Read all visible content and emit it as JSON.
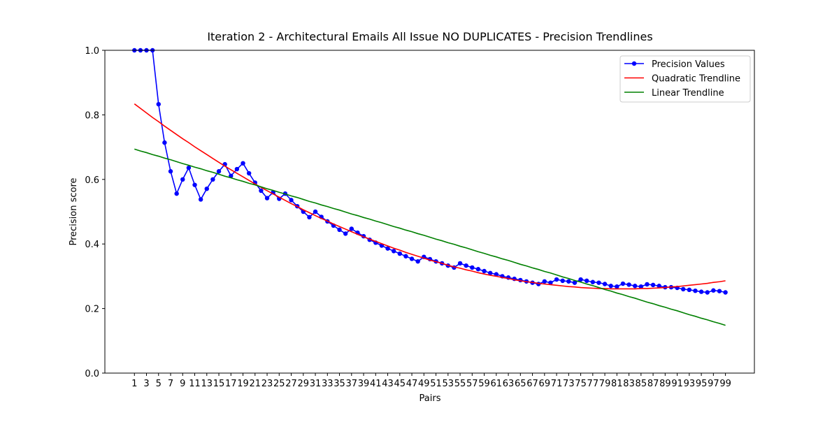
{
  "chart_data": {
    "type": "line",
    "title": "Iteration 2 - Architectural Emails All Issue NO DUPLICATES - Precision Trendlines",
    "x_label": "Pairs",
    "y_label": "Precision score",
    "x": [
      1,
      2,
      3,
      4,
      5,
      6,
      7,
      8,
      9,
      10,
      11,
      12,
      13,
      14,
      15,
      16,
      17,
      18,
      19,
      20,
      21,
      22,
      23,
      24,
      25,
      26,
      27,
      28,
      29,
      30,
      31,
      32,
      33,
      34,
      35,
      36,
      37,
      38,
      39,
      40,
      41,
      42,
      43,
      44,
      45,
      46,
      47,
      48,
      49,
      50,
      51,
      52,
      53,
      54,
      55,
      56,
      57,
      58,
      59,
      60,
      61,
      62,
      63,
      64,
      65,
      66,
      67,
      68,
      69,
      70,
      71,
      72,
      73,
      74,
      75,
      76,
      77,
      78,
      79,
      80,
      81,
      82,
      83,
      84,
      85,
      86,
      87,
      88,
      89,
      90,
      91,
      92,
      93,
      94,
      95,
      96,
      97,
      98,
      99
    ],
    "xlim": [
      -3.9,
      103.8
    ],
    "xticks": [
      1,
      3,
      5,
      7,
      9,
      11,
      13,
      15,
      17,
      19,
      21,
      23,
      25,
      27,
      29,
      31,
      33,
      35,
      37,
      39,
      41,
      43,
      45,
      47,
      49,
      51,
      53,
      55,
      57,
      59,
      61,
      63,
      65,
      67,
      69,
      71,
      73,
      75,
      77,
      79,
      81,
      83,
      85,
      87,
      89,
      91,
      93,
      95,
      97,
      99
    ],
    "ylim": [
      0,
      1
    ],
    "yticks": [
      {
        "value": 0,
        "label": "0.0"
      },
      {
        "value": 0.2,
        "label": "0.2"
      },
      {
        "value": 0.4,
        "label": "0.4"
      },
      {
        "value": 0.6,
        "label": "0.6"
      },
      {
        "value": 0.8,
        "label": "0.8"
      },
      {
        "value": 1,
        "label": "1.0"
      }
    ],
    "legend_loc": "upper right",
    "series": [
      {
        "name": "Precision Values",
        "color": "#0000ff",
        "marker": true,
        "values": [
          1.0,
          1.0,
          1.0,
          1.0,
          0.833,
          0.714,
          0.625,
          0.556,
          0.6,
          0.636,
          0.583,
          0.538,
          0.571,
          0.6,
          0.625,
          0.647,
          0.611,
          0.632,
          0.65,
          0.619,
          0.59,
          0.565,
          0.542,
          0.56,
          0.54,
          0.556,
          0.536,
          0.517,
          0.5,
          0.483,
          0.5,
          0.484,
          0.47,
          0.457,
          0.444,
          0.432,
          0.447,
          0.435,
          0.424,
          0.413,
          0.404,
          0.395,
          0.386,
          0.378,
          0.37,
          0.362,
          0.354,
          0.346,
          0.36,
          0.353,
          0.346,
          0.34,
          0.333,
          0.327,
          0.34,
          0.333,
          0.327,
          0.322,
          0.316,
          0.31,
          0.306,
          0.3,
          0.296,
          0.292,
          0.288,
          0.284,
          0.28,
          0.276,
          0.284,
          0.28,
          0.29,
          0.286,
          0.284,
          0.28,
          0.29,
          0.286,
          0.282,
          0.28,
          0.276,
          0.27,
          0.268,
          0.277,
          0.274,
          0.27,
          0.268,
          0.275,
          0.273,
          0.27,
          0.266,
          0.266,
          0.264,
          0.26,
          0.258,
          0.255,
          0.252,
          0.25,
          0.256,
          0.254,
          0.25
        ]
      },
      {
        "name": "Quadratic Trendline",
        "color": "#ff0000",
        "marker": false,
        "values": [
          0.834,
          0.82,
          0.806,
          0.792,
          0.779,
          0.765,
          0.752,
          0.739,
          0.726,
          0.714,
          0.701,
          0.689,
          0.677,
          0.665,
          0.653,
          0.641,
          0.63,
          0.619,
          0.608,
          0.597,
          0.586,
          0.575,
          0.565,
          0.555,
          0.545,
          0.535,
          0.525,
          0.516,
          0.506,
          0.497,
          0.488,
          0.479,
          0.471,
          0.462,
          0.454,
          0.446,
          0.438,
          0.43,
          0.422,
          0.415,
          0.408,
          0.401,
          0.394,
          0.387,
          0.381,
          0.374,
          0.368,
          0.362,
          0.356,
          0.35,
          0.345,
          0.34,
          0.334,
          0.329,
          0.325,
          0.32,
          0.316,
          0.311,
          0.307,
          0.303,
          0.3,
          0.296,
          0.293,
          0.289,
          0.286,
          0.283,
          0.281,
          0.278,
          0.276,
          0.274,
          0.272,
          0.27,
          0.268,
          0.267,
          0.265,
          0.264,
          0.263,
          0.262,
          0.262,
          0.261,
          0.261,
          0.261,
          0.261,
          0.261,
          0.262,
          0.262,
          0.263,
          0.264,
          0.265,
          0.267,
          0.268,
          0.27,
          0.272,
          0.274,
          0.276,
          0.278,
          0.281,
          0.283,
          0.286
        ]
      },
      {
        "name": "Linear Trendline",
        "color": "#008000",
        "marker": false,
        "values": [
          0.694,
          0.688,
          0.683,
          0.677,
          0.672,
          0.666,
          0.661,
          0.655,
          0.649,
          0.644,
          0.638,
          0.633,
          0.627,
          0.622,
          0.616,
          0.61,
          0.605,
          0.599,
          0.594,
          0.588,
          0.583,
          0.577,
          0.571,
          0.566,
          0.56,
          0.555,
          0.549,
          0.544,
          0.538,
          0.532,
          0.527,
          0.521,
          0.516,
          0.51,
          0.505,
          0.499,
          0.493,
          0.488,
          0.482,
          0.477,
          0.471,
          0.466,
          0.46,
          0.454,
          0.449,
          0.443,
          0.438,
          0.432,
          0.427,
          0.421,
          0.415,
          0.41,
          0.404,
          0.399,
          0.393,
          0.388,
          0.382,
          0.376,
          0.371,
          0.365,
          0.36,
          0.354,
          0.349,
          0.343,
          0.337,
          0.332,
          0.326,
          0.321,
          0.315,
          0.31,
          0.304,
          0.298,
          0.293,
          0.287,
          0.282,
          0.276,
          0.271,
          0.265,
          0.259,
          0.254,
          0.248,
          0.243,
          0.237,
          0.232,
          0.226,
          0.22,
          0.215,
          0.209,
          0.204,
          0.198,
          0.193,
          0.187,
          0.181,
          0.176,
          0.17,
          0.165,
          0.159,
          0.154,
          0.148
        ]
      }
    ]
  }
}
